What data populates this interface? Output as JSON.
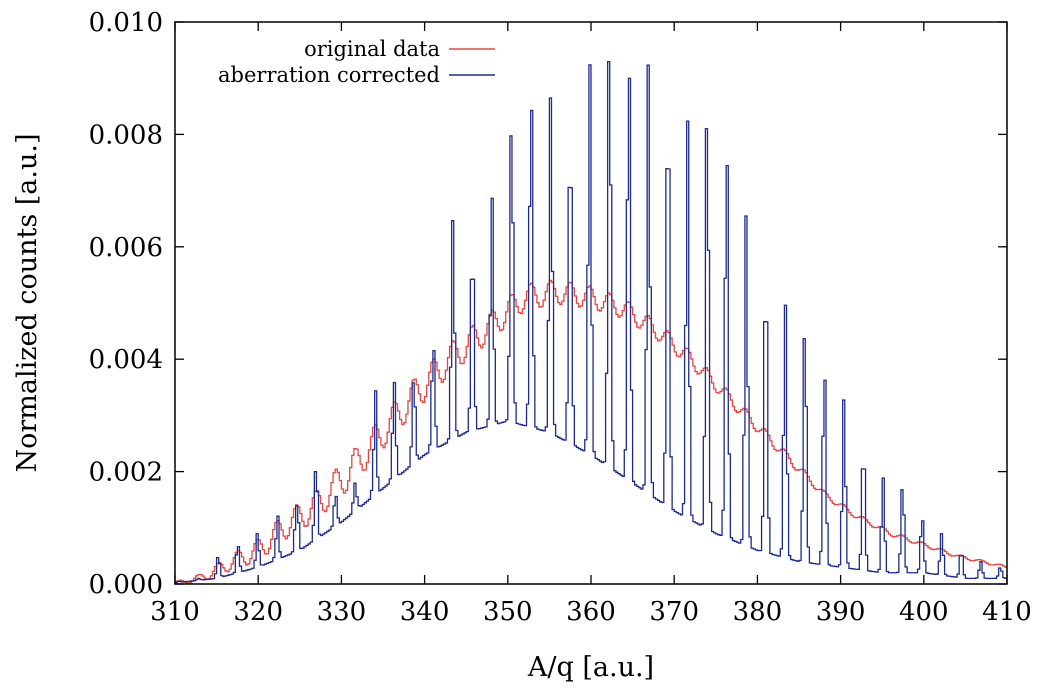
{
  "chart_data": {
    "type": "line",
    "title": "",
    "xlabel": "A/q [a.u.]",
    "ylabel": "Normalized counts [a.u.]",
    "xlim": [
      310,
      410
    ],
    "ylim": [
      0.0,
      0.01
    ],
    "xticks": [
      310,
      320,
      330,
      340,
      350,
      360,
      370,
      380,
      390,
      400,
      410
    ],
    "xtick_labels": [
      "310",
      "320",
      "330",
      "340",
      "350",
      "360",
      "370",
      "380",
      "390",
      "400",
      "410"
    ],
    "yticks": [
      0.0,
      0.002,
      0.004,
      0.006,
      0.008,
      0.01
    ],
    "ytick_labels": [
      "0.000",
      "0.002",
      "0.004",
      "0.006",
      "0.008",
      "0.010"
    ],
    "grid": false,
    "legend_position": "top-left",
    "step_style": "histogram",
    "series": [
      {
        "name": "original data",
        "color": "#e8463e",
        "periodic": {
          "x_start": 310,
          "x_end": 410,
          "bin_width": 0.25,
          "period": 2.35,
          "phase_x": 352.8,
          "envelope": [
            [
              310,
              2e-05
            ],
            [
              313,
              0.0001
            ],
            [
              317,
              0.0004
            ],
            [
              320,
              0.0006
            ],
            [
              323,
              0.001
            ],
            [
              327,
              0.0014
            ],
            [
              331,
              0.002
            ],
            [
              335,
              0.0027
            ],
            [
              339,
              0.0034
            ],
            [
              343,
              0.004
            ],
            [
              348,
              0.0046
            ],
            [
              352,
              0.0051
            ],
            [
              356,
              0.0052
            ],
            [
              360,
              0.0051
            ],
            [
              364,
              0.0049
            ],
            [
              368,
              0.0045
            ],
            [
              372,
              0.004
            ],
            [
              376,
              0.0034
            ],
            [
              380,
              0.0028
            ],
            [
              384,
              0.0022
            ],
            [
              388,
              0.0016
            ],
            [
              392,
              0.0012
            ],
            [
              396,
              0.0009
            ],
            [
              400,
              0.0007
            ],
            [
              404,
              0.0005
            ],
            [
              410,
              0.0003
            ]
          ],
          "modulation": [
            [
              310,
              2e-05
            ],
            [
              320,
              0.0002
            ],
            [
              330,
              0.0003
            ],
            [
              340,
              0.0003
            ],
            [
              350,
              0.00025
            ],
            [
              360,
              0.0002
            ],
            [
              370,
              0.00015
            ],
            [
              380,
              0.0001
            ],
            [
              390,
              5e-05
            ],
            [
              410,
              2e-05
            ]
          ]
        }
      },
      {
        "name": "aberration corrected",
        "color": "#1b2a8c",
        "periodic": {
          "x_start": 310,
          "x_end": 410,
          "bin_width": 0.25,
          "period": 2.35,
          "phase_x": 352.8,
          "peak_sharpness": 8,
          "peak_heights": [
            [
              310,
              5e-05
            ],
            [
              313,
              0.0001
            ],
            [
              316,
              0.0005
            ],
            [
              318.5,
              0.0007
            ],
            [
              321,
              0.0009
            ],
            [
              323.5,
              0.0014
            ],
            [
              326,
              0.0021
            ],
            [
              328.5,
              0.0016
            ],
            [
              331,
              0.0018
            ],
            [
              333,
              0.0026
            ],
            [
              335,
              0.0039
            ],
            [
              337,
              0.0036
            ],
            [
              339,
              0.0037
            ],
            [
              341,
              0.0043
            ],
            [
              343.5,
              0.0065
            ],
            [
              346,
              0.0061
            ],
            [
              348.3,
              0.0069
            ],
            [
              350.6,
              0.0084
            ],
            [
              352.8,
              0.0089
            ],
            [
              355.2,
              0.0087
            ],
            [
              357.5,
              0.0082
            ],
            [
              359.9,
              0.0093
            ],
            [
              362.2,
              0.0099
            ],
            [
              364.6,
              0.0096
            ],
            [
              366.9,
              0.0093
            ],
            [
              369.3,
              0.0089
            ],
            [
              371.6,
              0.0083
            ],
            [
              374,
              0.0087
            ],
            [
              376.3,
              0.008
            ],
            [
              378.7,
              0.0066
            ],
            [
              381,
              0.0057
            ],
            [
              383.3,
              0.005
            ],
            [
              385.7,
              0.0047
            ],
            [
              388,
              0.0039
            ],
            [
              390.4,
              0.0033
            ],
            [
              392.7,
              0.0025
            ],
            [
              395.1,
              0.0019
            ],
            [
              397.4,
              0.0018
            ],
            [
              399.8,
              0.0012
            ],
            [
              402.1,
              0.0009
            ],
            [
              404.5,
              0.0006
            ],
            [
              406.8,
              0.0004
            ],
            [
              410,
              0.0003
            ]
          ],
          "baseline": [
            [
              310,
              2e-05
            ],
            [
              315,
              0.0001
            ],
            [
              320,
              0.0003
            ],
            [
              325,
              0.0006
            ],
            [
              330,
              0.0011
            ],
            [
              335,
              0.0017
            ],
            [
              340,
              0.0023
            ],
            [
              345,
              0.0027
            ],
            [
              350,
              0.0029
            ],
            [
              355,
              0.0027
            ],
            [
              360,
              0.0023
            ],
            [
              365,
              0.0018
            ],
            [
              370,
              0.0013
            ],
            [
              375,
              0.0009
            ],
            [
              380,
              0.0006
            ],
            [
              385,
              0.0004
            ],
            [
              390,
              0.0003
            ],
            [
              395,
              0.0002
            ],
            [
              400,
              0.0002
            ],
            [
              405,
              0.0001
            ],
            [
              410,
              0.0001
            ]
          ]
        }
      }
    ]
  }
}
